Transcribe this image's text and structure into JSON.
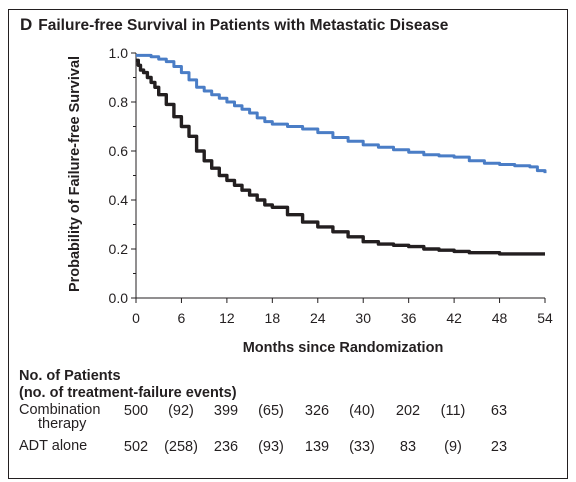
{
  "panel": {
    "letter": "D",
    "title": "Failure-free Survival in Patients with Metastatic Disease"
  },
  "chart_data": {
    "type": "line",
    "xlabel": "Months since Randomization",
    "ylabel": "Probability of Failure-free Survival",
    "xlim": [
      0,
      54
    ],
    "ylim": [
      0,
      1.0
    ],
    "xticks": [
      0,
      6,
      12,
      18,
      24,
      30,
      36,
      42,
      48,
      54
    ],
    "yticks": [
      0.0,
      0.2,
      0.4,
      0.6,
      0.8,
      1.0
    ],
    "ytick_labels": [
      "0.0",
      "0.2",
      "0.4",
      "0.6",
      "0.8",
      "1.0"
    ],
    "grid": false,
    "series": [
      {
        "name": "Combination therapy",
        "color": "#4a7dc6",
        "x": [
          0,
          0.5,
          1,
          2,
          3,
          4,
          5,
          6,
          7,
          8,
          9,
          10,
          11,
          12,
          13,
          14,
          15,
          16,
          17,
          18,
          20,
          22,
          24,
          26,
          28,
          30,
          32,
          34,
          36,
          38,
          40,
          42,
          44,
          46,
          48,
          50,
          52,
          53,
          54
        ],
        "y": [
          0.99,
          0.99,
          0.99,
          0.985,
          0.975,
          0.965,
          0.945,
          0.92,
          0.89,
          0.86,
          0.845,
          0.83,
          0.815,
          0.8,
          0.785,
          0.77,
          0.755,
          0.735,
          0.72,
          0.71,
          0.7,
          0.69,
          0.675,
          0.655,
          0.64,
          0.625,
          0.615,
          0.605,
          0.595,
          0.585,
          0.58,
          0.575,
          0.56,
          0.55,
          0.545,
          0.54,
          0.535,
          0.52,
          0.51
        ]
      },
      {
        "name": "ADT alone",
        "color": "#231f20",
        "x": [
          0,
          0.3,
          0.6,
          1,
          1.5,
          2,
          2.5,
          3,
          4,
          5,
          6,
          7,
          8,
          9,
          10,
          11,
          12,
          13,
          14,
          15,
          16,
          17,
          18,
          20,
          22,
          24,
          26,
          28,
          30,
          32,
          34,
          36,
          38,
          40,
          42,
          44,
          46,
          48,
          50,
          52,
          54
        ],
        "y": [
          0.97,
          0.95,
          0.93,
          0.92,
          0.9,
          0.88,
          0.86,
          0.83,
          0.79,
          0.74,
          0.7,
          0.66,
          0.6,
          0.56,
          0.53,
          0.5,
          0.48,
          0.46,
          0.44,
          0.42,
          0.4,
          0.38,
          0.37,
          0.34,
          0.31,
          0.29,
          0.27,
          0.25,
          0.23,
          0.22,
          0.215,
          0.21,
          0.2,
          0.195,
          0.19,
          0.185,
          0.185,
          0.18,
          0.18,
          0.18,
          0.18
        ]
      }
    ]
  },
  "risk_table": {
    "heading_line1": "No. of Patients",
    "heading_line2": "(no. of treatment-failure events)",
    "rows": [
      {
        "label_line1": "Combination",
        "label_line2": "therapy",
        "cells": [
          "500",
          "(92)",
          "399",
          "(65)",
          "326",
          "(40)",
          "202",
          "(11)",
          "63"
        ]
      },
      {
        "label_line1": "ADT alone",
        "label_line2": "",
        "cells": [
          "502",
          "(258)",
          "236",
          "(93)",
          "139",
          "(33)",
          "83",
          "(9)",
          "23"
        ]
      }
    ]
  }
}
